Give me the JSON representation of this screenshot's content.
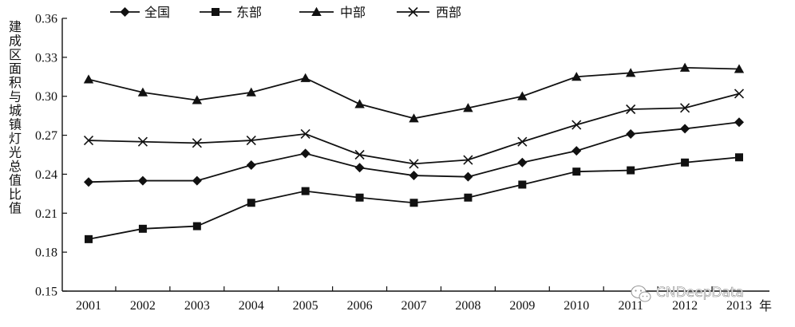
{
  "chart_data": {
    "type": "line",
    "xlabel": "年",
    "ylabel": "建成区面积与城镇灯光总值比值",
    "ylim": [
      0.15,
      0.36
    ],
    "yticks": [
      "0.15",
      "0.18",
      "0.21",
      "0.24",
      "0.27",
      "0.30",
      "0.33",
      "0.36"
    ],
    "categories": [
      "2001",
      "2002",
      "2003",
      "2004",
      "2005",
      "2006",
      "2007",
      "2008",
      "2009",
      "2010",
      "2011",
      "2012",
      "2013"
    ],
    "legend_position": "top",
    "grid": false,
    "series": [
      {
        "name": "全国",
        "marker": "diamond",
        "values": [
          0.234,
          0.235,
          0.235,
          0.247,
          0.256,
          0.245,
          0.239,
          0.238,
          0.249,
          0.258,
          0.271,
          0.275,
          0.28
        ]
      },
      {
        "name": "东部",
        "marker": "square",
        "values": [
          0.19,
          0.198,
          0.2,
          0.218,
          0.227,
          0.222,
          0.218,
          0.222,
          0.232,
          0.242,
          0.243,
          0.249,
          0.253
        ]
      },
      {
        "name": "中部",
        "marker": "triangle",
        "values": [
          0.313,
          0.303,
          0.297,
          0.303,
          0.314,
          0.294,
          0.283,
          0.291,
          0.3,
          0.315,
          0.318,
          0.322,
          0.321
        ]
      },
      {
        "name": "西部",
        "marker": "x",
        "values": [
          0.266,
          0.265,
          0.264,
          0.266,
          0.271,
          0.255,
          0.248,
          0.251,
          0.265,
          0.278,
          0.29,
          0.291,
          0.302
        ]
      }
    ]
  },
  "watermark": {
    "text": "CNDeepData",
    "icon": "wechat-icon"
  }
}
